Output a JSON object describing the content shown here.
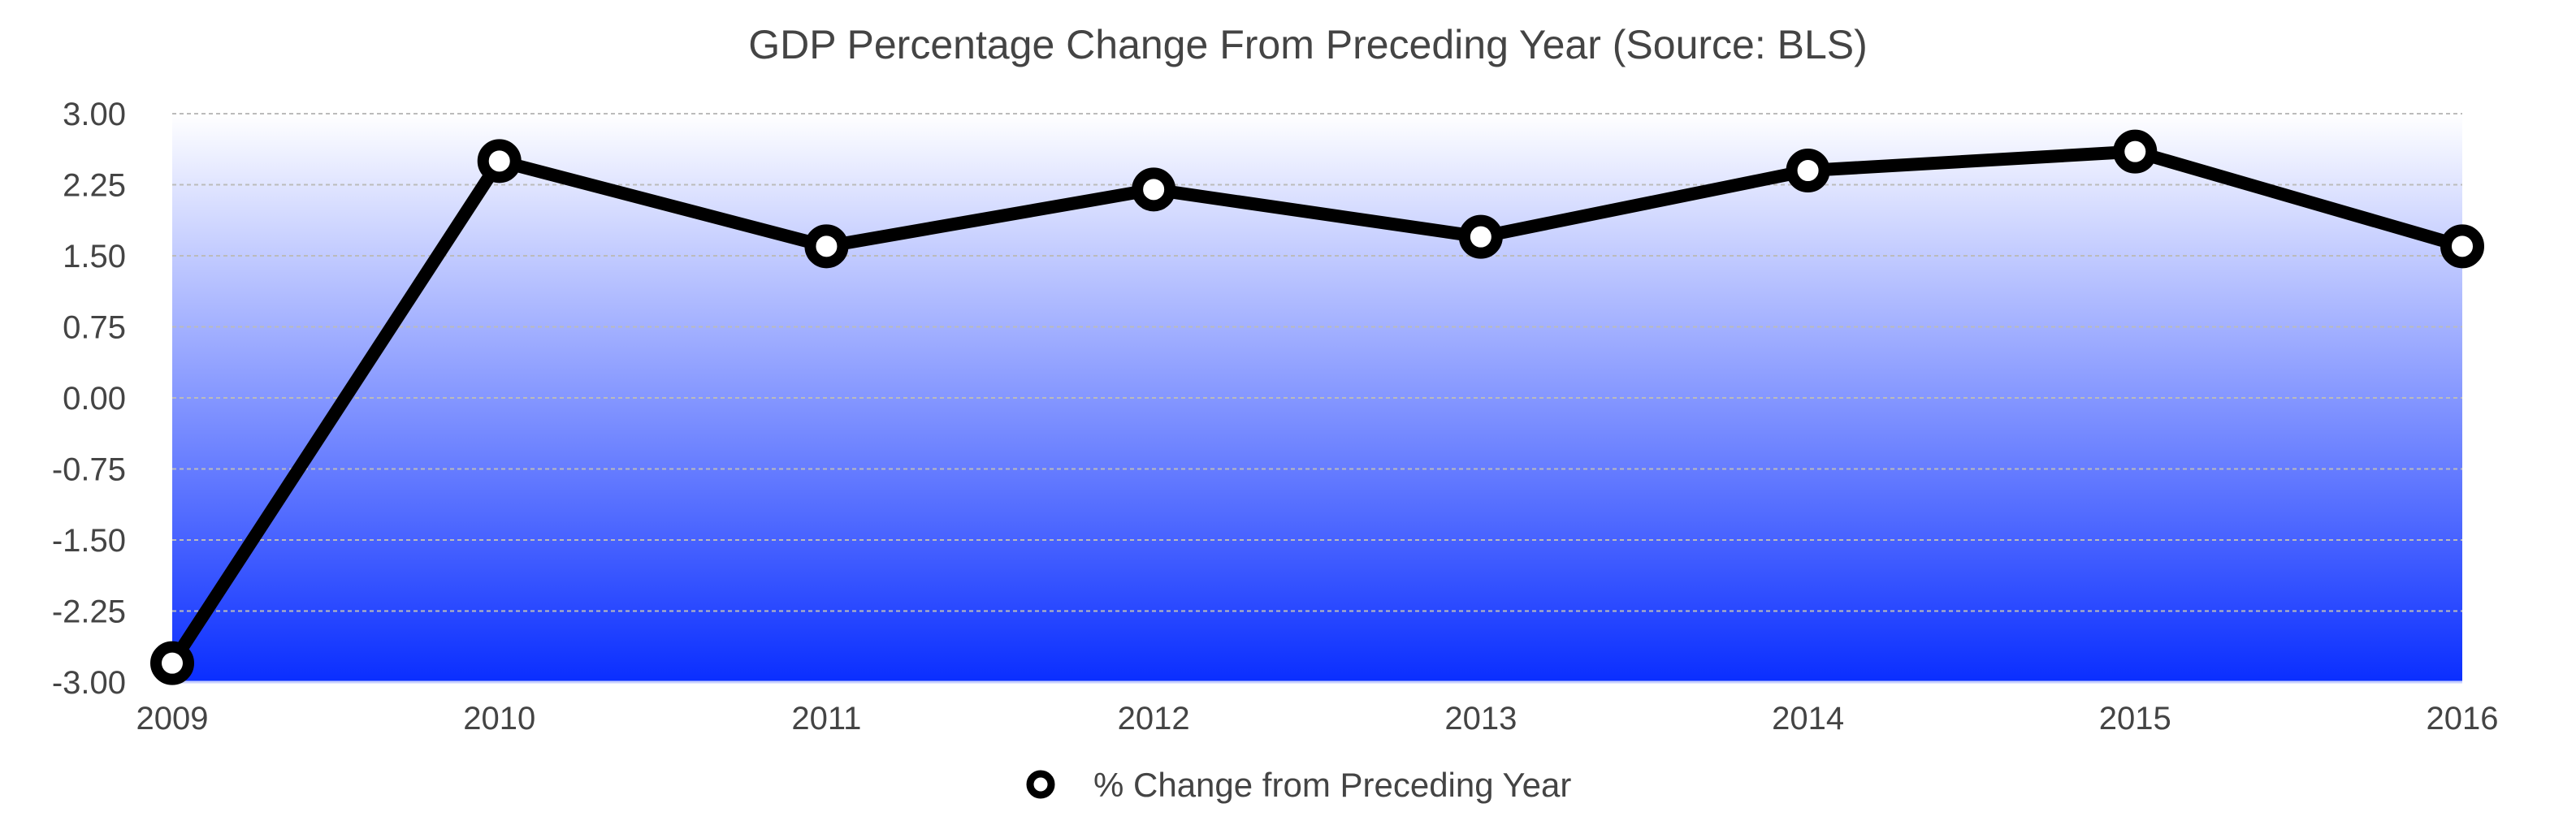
{
  "chart_data": {
    "type": "line",
    "title": "GDP Percentage Change From Preceding Year  (Source: BLS)",
    "xlabel": "",
    "ylabel": "",
    "categories": [
      "2009",
      "2010",
      "2011",
      "2012",
      "2013",
      "2014",
      "2015",
      "2016"
    ],
    "series": [
      {
        "name": "% Change from Preceding Year",
        "values": [
          -2.8,
          2.5,
          1.6,
          2.2,
          1.7,
          2.4,
          2.6,
          1.6
        ]
      }
    ],
    "ylim": [
      -3.0,
      3.0
    ],
    "yticks": [
      "3.00",
      "2.25",
      "1.50",
      "0.75",
      "0.00",
      "-0.75",
      "-1.50",
      "-2.25",
      "-3.00"
    ],
    "grid": true,
    "legend_position": "bottom-center",
    "colors": {
      "line": "#000000",
      "marker_fill": "#ffffff",
      "gradient_top": "#ffffff",
      "gradient_bottom": "#0a2eff",
      "grid": "#bbbbbb",
      "text": "#444444"
    }
  }
}
